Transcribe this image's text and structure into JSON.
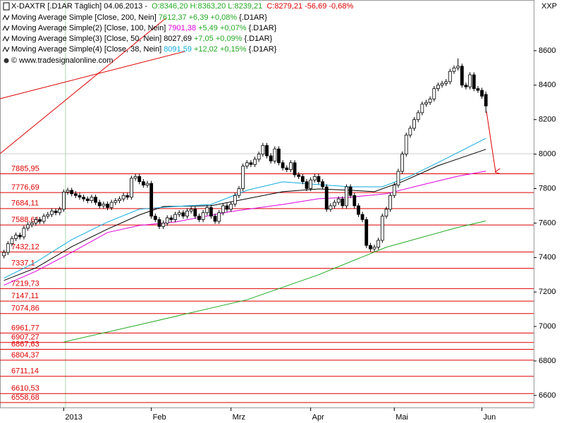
{
  "chart_data": {
    "type": "candlestick",
    "title": "X-DAXTR [.D1AR  Täglich] 04.06.2013 -",
    "ohl_text": "O:8346,20 H:8363,20 L:8239,21",
    "close_text": "C:8279,21 -56,69 -0,68%",
    "source": "© www.tradesignalonline.com",
    "axis_label": "XXP",
    "ylim": [
      6530,
      8894
    ],
    "yticks": [
      6600,
      6800,
      7000,
      7200,
      7400,
      7600,
      7800,
      8000,
      8200,
      8400,
      8600
    ],
    "xlim": [
      -1,
      133
    ],
    "xticks": [
      {
        "value": 15,
        "label": "2013"
      },
      {
        "value": 37,
        "label": "Feb"
      },
      {
        "value": 57,
        "label": "Mrz"
      },
      {
        "value": 77,
        "label": "Apr"
      },
      {
        "value": 98,
        "label": "Mai"
      },
      {
        "value": 120,
        "label": "Jun"
      }
    ],
    "candles": {
      "open": [
        7410,
        7430,
        7480,
        7510,
        7530,
        7520,
        7570,
        7590,
        7600,
        7620,
        7610,
        7640,
        7650,
        7670,
        7660,
        7680,
        7780,
        7790,
        7770,
        7760,
        7750,
        7740,
        7730,
        7750,
        7720,
        7700,
        7710,
        7690,
        7720,
        7730,
        7740,
        7760,
        7750,
        7860,
        7870,
        7840,
        7820,
        7830,
        7640,
        7620,
        7580,
        7600,
        7630,
        7620,
        7650,
        7660,
        7640,
        7670,
        7680,
        7640,
        7620,
        7660,
        7690,
        7640,
        7610,
        7660,
        7700,
        7680,
        7710,
        7760,
        7800,
        7930,
        7950,
        7940,
        7970,
        8000,
        8050,
        7990,
        7960,
        8030,
        7950,
        7920,
        7910,
        7950,
        7880,
        7870,
        7840,
        7800,
        7850,
        7870,
        7840,
        7810,
        7680,
        7700,
        7720,
        7740,
        7700,
        7810,
        7760,
        7700,
        7650,
        7620,
        7470,
        7450,
        7460,
        7500,
        7640,
        7680,
        7760,
        7820,
        7900,
        8000,
        8110,
        8150,
        8200,
        8240,
        8290,
        8300,
        8320,
        8380,
        8400,
        8410,
        8420,
        8480,
        8500,
        8510,
        8400,
        8390,
        8460,
        8380,
        8370,
        8346.2
      ],
      "high": [
        7445,
        7495,
        7525,
        7545,
        7545,
        7585,
        7605,
        7615,
        7635,
        7635,
        7655,
        7665,
        7685,
        7685,
        7695,
        7795,
        7805,
        7805,
        7785,
        7775,
        7765,
        7755,
        7765,
        7765,
        7735,
        7725,
        7725,
        7735,
        7745,
        7755,
        7775,
        7775,
        7875,
        7885,
        7885,
        7855,
        7845,
        7845,
        7655,
        7635,
        7615,
        7645,
        7645,
        7665,
        7675,
        7675,
        7685,
        7695,
        7695,
        7655,
        7675,
        7705,
        7705,
        7655,
        7675,
        7715,
        7715,
        7725,
        7775,
        7815,
        7945,
        7965,
        7965,
        7985,
        8015,
        8065,
        8065,
        8005,
        8045,
        8045,
        7965,
        7935,
        7965,
        7965,
        7895,
        7885,
        7855,
        7865,
        7885,
        7885,
        7855,
        7825,
        7715,
        7735,
        7755,
        7755,
        7825,
        7825,
        7775,
        7715,
        7665,
        7635,
        7485,
        7475,
        7515,
        7655,
        7695,
        7775,
        7835,
        7915,
        8015,
        8125,
        8165,
        8215,
        8255,
        8305,
        8315,
        8335,
        8395,
        8415,
        8425,
        8435,
        8495,
        8515,
        8555,
        8525,
        8415,
        8475,
        8475,
        8395,
        8385,
        8363.2
      ],
      "low": [
        7395,
        7415,
        7465,
        7495,
        7505,
        7505,
        7555,
        7575,
        7585,
        7595,
        7595,
        7625,
        7635,
        7645,
        7645,
        7665,
        7765,
        7755,
        7745,
        7735,
        7725,
        7715,
        7715,
        7705,
        7685,
        7685,
        7675,
        7675,
        7705,
        7715,
        7725,
        7735,
        7735,
        7845,
        7825,
        7805,
        7805,
        7625,
        7605,
        7565,
        7565,
        7585,
        7605,
        7605,
        7635,
        7625,
        7625,
        7655,
        7625,
        7605,
        7605,
        7645,
        7625,
        7595,
        7595,
        7645,
        7665,
        7665,
        7695,
        7745,
        7785,
        7915,
        7925,
        7925,
        7955,
        7985,
        7975,
        7945,
        7945,
        7935,
        7905,
        7895,
        7895,
        7865,
        7855,
        7825,
        7785,
        7785,
        7835,
        7825,
        7795,
        7665,
        7665,
        7685,
        7705,
        7685,
        7685,
        7745,
        7685,
        7635,
        7605,
        7455,
        7435,
        7435,
        7445,
        7485,
        7625,
        7665,
        7745,
        7805,
        7885,
        7985,
        8095,
        8135,
        8185,
        8225,
        8275,
        8285,
        8305,
        8365,
        8385,
        8395,
        8405,
        8465,
        8485,
        8385,
        8375,
        8375,
        8365,
        8355,
        8321,
        8239.21
      ],
      "close": [
        7430,
        7480,
        7510,
        7530,
        7520,
        7570,
        7590,
        7600,
        7620,
        7610,
        7640,
        7650,
        7670,
        7660,
        7680,
        7780,
        7790,
        7770,
        7760,
        7750,
        7740,
        7730,
        7750,
        7720,
        7700,
        7710,
        7690,
        7720,
        7730,
        7740,
        7760,
        7750,
        7860,
        7870,
        7840,
        7820,
        7830,
        7640,
        7620,
        7580,
        7600,
        7630,
        7620,
        7650,
        7660,
        7640,
        7670,
        7680,
        7640,
        7620,
        7660,
        7690,
        7640,
        7610,
        7660,
        7700,
        7680,
        7710,
        7760,
        7800,
        7930,
        7950,
        7940,
        7970,
        8000,
        8050,
        7990,
        7960,
        8030,
        7950,
        7920,
        7910,
        7950,
        7880,
        7870,
        7840,
        7800,
        7850,
        7870,
        7840,
        7810,
        7680,
        7700,
        7720,
        7740,
        7700,
        7810,
        7760,
        7700,
        7650,
        7620,
        7470,
        7450,
        7460,
        7500,
        7640,
        7680,
        7760,
        7820,
        7900,
        8000,
        8110,
        8150,
        8200,
        8240,
        8290,
        8300,
        8320,
        8380,
        8400,
        8410,
        8420,
        8480,
        8500,
        8510,
        8400,
        8390,
        8460,
        8380,
        8370,
        8336,
        8279.21
      ]
    },
    "series": [
      {
        "name": "Moving Average Simple [Close, 200, Nein]",
        "color": "#22aa22",
        "value_color": "#22aa22",
        "last": {
          "value": 7612.37,
          "label": "7612,37"
        },
        "change": "+6,39 +0,08%",
        "suffix": "{.D1AR}",
        "x": [
          15,
          34,
          61,
          79,
          96,
          114,
          121
        ],
        "values": [
          6910,
          7010,
          7155,
          7300,
          7460,
          7575,
          7612.37
        ]
      },
      {
        "name": "Moving Average Simple(2) [Close, 100, Nein]",
        "color": "#dd00dd",
        "value_color": "#dd00dd",
        "last": {
          "value": 7901.38,
          "label": "7901,38"
        },
        "change": "+5,49 +0,07%",
        "suffix": "{.D1AR}",
        "x": [
          0,
          8,
          17,
          26,
          34,
          43,
          57,
          70,
          79,
          87,
          96,
          105,
          114,
          121
        ],
        "values": [
          7240,
          7320,
          7430,
          7545,
          7586,
          7606,
          7667,
          7708,
          7741,
          7750,
          7770,
          7822,
          7872,
          7901.38
        ]
      },
      {
        "name": "Moving Average Simple(3) [Close, 50, Nein]",
        "color": "#000000",
        "value_color": "#000000",
        "last": {
          "value": 8027.69,
          "label": "8027,69"
        },
        "change": "+7,05 +0,09%",
        "suffix": "{.D1AR}",
        "x": [
          0,
          8,
          17,
          26,
          34,
          40,
          52,
          61,
          70,
          79,
          87,
          93,
          100,
          109,
          121
        ],
        "values": [
          7267,
          7340,
          7463,
          7565,
          7647,
          7696,
          7700,
          7741,
          7782,
          7798,
          7790,
          7782,
          7840,
          7933,
          8027.69
        ]
      },
      {
        "name": "Moving Average Simple(4) [Close, 38, Nein]",
        "color": "#11aadd",
        "value_color": "#11aadd",
        "last": {
          "value": 8091.59,
          "label": "8091,59"
        },
        "change": "+12,02 +0,15%",
        "suffix": "{.D1AR}",
        "x": [
          0,
          8,
          17,
          26,
          34,
          43,
          52,
          61,
          70,
          79,
          87,
          95,
          102,
          111,
          121
        ],
        "values": [
          7280,
          7373,
          7504,
          7606,
          7680,
          7696,
          7708,
          7790,
          7839,
          7823,
          7810,
          7810,
          7872,
          7974,
          8091.59
        ]
      }
    ],
    "change_color": "#22aa22",
    "levels": [
      {
        "value": 7885.95,
        "label": "7885,95"
      },
      {
        "value": 7776.69,
        "label": "7776,69"
      },
      {
        "value": 7684.11,
        "label": "7684,11"
      },
      {
        "value": 7588.61,
        "label": "7588,61"
      },
      {
        "value": 7432.12,
        "label": "7432,12"
      },
      {
        "value": 7337.1,
        "label": "7337,1"
      },
      {
        "value": 7219.73,
        "label": "7219,73"
      },
      {
        "value": 7147.11,
        "label": "7147,11"
      },
      {
        "value": 7074.86,
        "label": "7074,86"
      },
      {
        "value": 6961.77,
        "label": "6961,77"
      },
      {
        "value": 6907.27,
        "label": "6907,27"
      },
      {
        "value": 6867.63,
        "label": "6867,63"
      },
      {
        "value": 6804.37,
        "label": "6804,37"
      },
      {
        "value": 6711.14,
        "label": "6711,14"
      },
      {
        "value": 6610.53,
        "label": "6610,53"
      },
      {
        "value": 6558.68,
        "label": "6558,68"
      }
    ],
    "level_color": "#dd0000"
  }
}
